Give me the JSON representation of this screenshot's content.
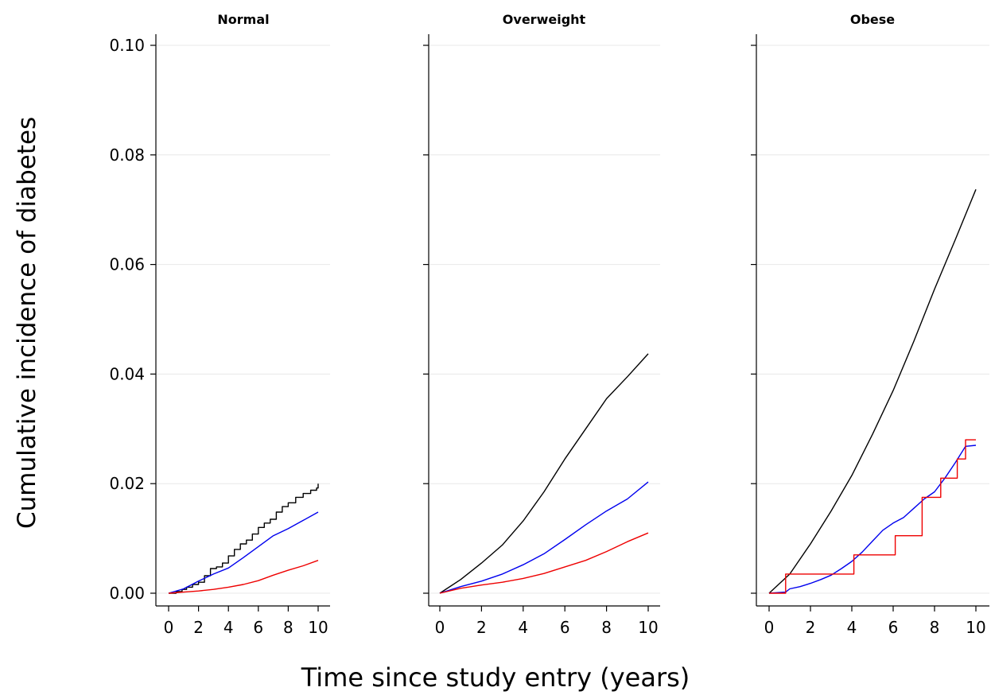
{
  "figure": {
    "ylabel": "Cumulative incidence of diabetes",
    "xlabel": "Time since study entry (years)"
  },
  "chart_data": [
    {
      "type": "line",
      "title": "Normal",
      "xlim": [
        0,
        10
      ],
      "ylim": [
        0,
        0.1
      ],
      "xticks": [
        "0",
        "2",
        "4",
        "6",
        "8",
        "10"
      ],
      "yticks": [
        "0.00",
        "0.02",
        "0.04",
        "0.06",
        "0.08",
        "0.10"
      ],
      "grid": true,
      "series": [
        {
          "color": "#000000",
          "step": true,
          "x": [
            0,
            0.5,
            0.9,
            1.2,
            1.6,
            2.0,
            2.4,
            2.8,
            3.2,
            3.6,
            4.0,
            4.4,
            4.8,
            5.2,
            5.6,
            6.0,
            6.4,
            6.8,
            7.2,
            7.6,
            8.0,
            8.5,
            9.0,
            9.5,
            9.9,
            10.0
          ],
          "y": [
            0,
            0.0003,
            0.0007,
            0.0011,
            0.0016,
            0.002,
            0.0032,
            0.0045,
            0.0048,
            0.0055,
            0.0068,
            0.008,
            0.009,
            0.0097,
            0.0108,
            0.012,
            0.0128,
            0.0135,
            0.0148,
            0.0158,
            0.0165,
            0.0175,
            0.0182,
            0.0188,
            0.0192,
            0.02
          ]
        },
        {
          "color": "#0000ee",
          "x": [
            0,
            1,
            2,
            3,
            4,
            5,
            6,
            7,
            8,
            9,
            10
          ],
          "y": [
            0,
            0.0008,
            0.0022,
            0.0035,
            0.0046,
            0.0065,
            0.0085,
            0.0105,
            0.0118,
            0.0133,
            0.0148
          ]
        },
        {
          "color": "#ee0000",
          "x": [
            0,
            1,
            2,
            3,
            4,
            5,
            6,
            7,
            8,
            9,
            10
          ],
          "y": [
            0,
            0.0002,
            0.0004,
            0.0007,
            0.0011,
            0.0016,
            0.0023,
            0.0033,
            0.0042,
            0.005,
            0.006
          ]
        }
      ]
    },
    {
      "type": "line",
      "title": "Overweight",
      "xlim": [
        0,
        10
      ],
      "ylim": [
        0,
        0.1
      ],
      "xticks": [
        "0",
        "2",
        "4",
        "6",
        "8",
        "10"
      ],
      "yticks": [],
      "grid": true,
      "series": [
        {
          "color": "#000000",
          "x": [
            0,
            1,
            2,
            3,
            4,
            5,
            6,
            7,
            8,
            9,
            10
          ],
          "y": [
            0,
            0.0025,
            0.0055,
            0.0088,
            0.0132,
            0.0185,
            0.0245,
            0.03,
            0.0355,
            0.0395,
            0.0437
          ]
        },
        {
          "color": "#0000ee",
          "x": [
            0,
            1,
            2,
            3,
            4,
            5,
            6,
            7,
            8,
            9,
            10
          ],
          "y": [
            0,
            0.0012,
            0.0022,
            0.0035,
            0.0052,
            0.0072,
            0.0098,
            0.0125,
            0.015,
            0.0172,
            0.0203
          ]
        },
        {
          "color": "#ee0000",
          "x": [
            0,
            1,
            2,
            3,
            4,
            5,
            6,
            7,
            8,
            9,
            10
          ],
          "y": [
            0,
            0.0009,
            0.0015,
            0.002,
            0.0027,
            0.0036,
            0.0048,
            0.006,
            0.0076,
            0.0094,
            0.011
          ]
        }
      ]
    },
    {
      "type": "line",
      "title": "Obese",
      "xlim": [
        0,
        10
      ],
      "ylim": [
        0,
        0.1
      ],
      "xticks": [
        "0",
        "2",
        "4",
        "6",
        "8",
        "10"
      ],
      "yticks": [],
      "grid": true,
      "series": [
        {
          "color": "#000000",
          "x": [
            0,
            1,
            2,
            3,
            4,
            5,
            6,
            7,
            8,
            9,
            10
          ],
          "y": [
            0,
            0.0035,
            0.009,
            0.015,
            0.0215,
            0.029,
            0.037,
            0.046,
            0.0555,
            0.0645,
            0.0737
          ]
        },
        {
          "color": "#0000ee",
          "x": [
            0,
            0.8,
            1.0,
            1.5,
            2.0,
            2.5,
            3.0,
            3.5,
            4.0,
            4.5,
            5.0,
            5.5,
            6.0,
            6.5,
            7.0,
            7.5,
            8.0,
            8.5,
            9.0,
            9.5,
            10.0
          ],
          "y": [
            0,
            0.0002,
            0.0008,
            0.0012,
            0.0018,
            0.0025,
            0.0033,
            0.0045,
            0.0058,
            0.0075,
            0.0095,
            0.0115,
            0.0128,
            0.0138,
            0.0155,
            0.0172,
            0.0185,
            0.021,
            0.0238,
            0.0268,
            0.027
          ]
        },
        {
          "color": "#ee0000",
          "step": true,
          "x": [
            0,
            0.8,
            4.1,
            6.1,
            7.4,
            8.3,
            9.1,
            9.5,
            10.0
          ],
          "y": [
            0,
            0.0035,
            0.007,
            0.0105,
            0.0175,
            0.021,
            0.0245,
            0.028,
            0.028
          ]
        }
      ]
    }
  ]
}
